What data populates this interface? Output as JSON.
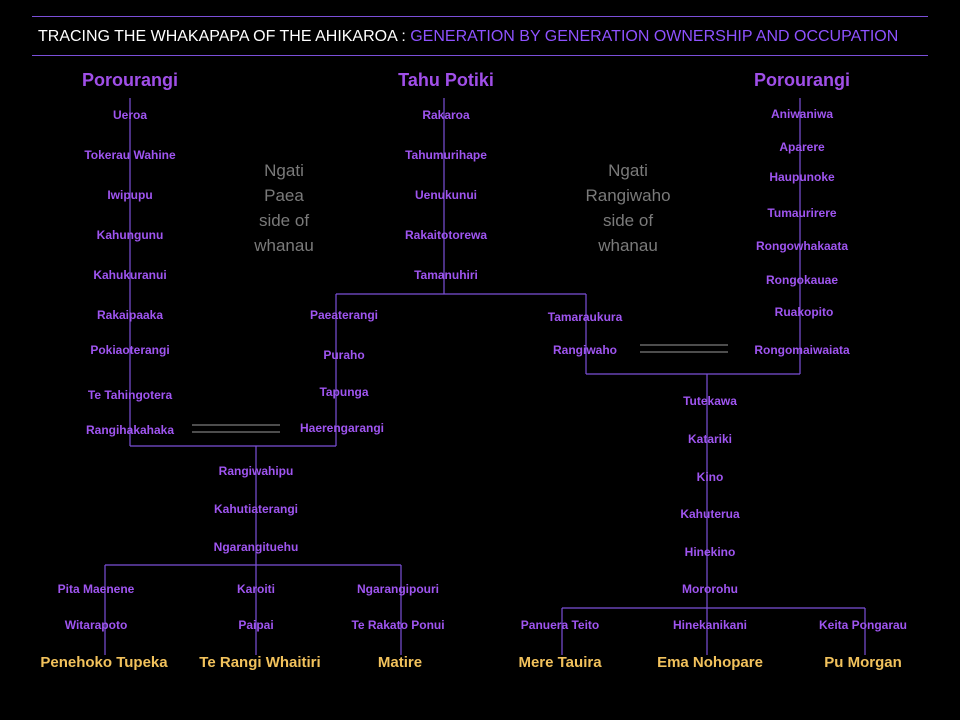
{
  "title": {
    "part1": "TRACING THE WHAKAPAPA OF THE AHIKAROA : ",
    "part2": "GENERATION BY GENERATION OWNERSHIP AND OCCUPATION"
  },
  "colors": {
    "line": "#7b4fd8",
    "name": "#9f55f0",
    "descendant": "#f2c25c",
    "note": "#7a7a7a",
    "background": "#000000"
  },
  "notes": {
    "paea": [
      "Ngati",
      "Paea",
      "side of",
      "whanau"
    ],
    "rangiwaho": [
      "Ngati",
      "Rangiwaho",
      "side of",
      "whanau"
    ]
  },
  "lines": {
    "porourangi_left": {
      "root": "Porourangi",
      "names": [
        "Ueroa",
        "Tokerau Wahine",
        "Iwipupu",
        "Kahungunu",
        "Kahukuranui",
        "Rakaipaaka",
        "Pokiaoterangi",
        "Te Tahingotera",
        "Rangihakahaka"
      ]
    },
    "tahu_potiki": {
      "root": "Tahu Potiki",
      "names": [
        "Rakaroa",
        "Tahumurihape",
        "Uenukunui",
        "Rakaitotorewa",
        "Tamanuhiri"
      ]
    },
    "paeaterangi": {
      "names": [
        "Paeaterangi",
        "Puraho",
        "Tapunga",
        "Haerengarangi"
      ]
    },
    "rangiwahipu": {
      "names": [
        "Rangiwahipu",
        "Kahutiaterangi",
        "Ngarangituehu"
      ]
    },
    "children_left": [
      {
        "names": [
          "Pita Maenene",
          "Witarapoto"
        ],
        "descendant": "Penehoko Tupeka"
      },
      {
        "names": [
          "Karoiti",
          "Paipai"
        ],
        "descendant": "Te Rangi Whaitiri"
      },
      {
        "names": [
          "Ngarangipouri",
          "Te Rakato  Ponui"
        ],
        "descendant": "Matire"
      }
    ],
    "tamaraukura": {
      "names": [
        "Tamaraukura",
        "Rangiwaho"
      ]
    },
    "porourangi_right": {
      "root": "Porourangi",
      "names": [
        "Aniwaniwa",
        "Aparere",
        "Haupunoke",
        "Tumaurirere",
        "Rongowhakaata",
        "Rongokauae",
        "Ruakopito",
        "Rongomaiwaiata"
      ]
    },
    "tutekawa": {
      "names": [
        "Tutekawa",
        "Katariki",
        "Kino",
        "Kahuterua",
        "Hinekino",
        "Mororohu"
      ]
    },
    "children_right": [
      {
        "names": [
          "Panuera Teito"
        ],
        "descendant": "Mere Tauira"
      },
      {
        "names": [
          "Hinekanikani"
        ],
        "descendant": "Ema Nohopare"
      },
      {
        "names": [
          "Keita Pongarau"
        ],
        "descendant": "Pu Morgan"
      }
    ]
  }
}
